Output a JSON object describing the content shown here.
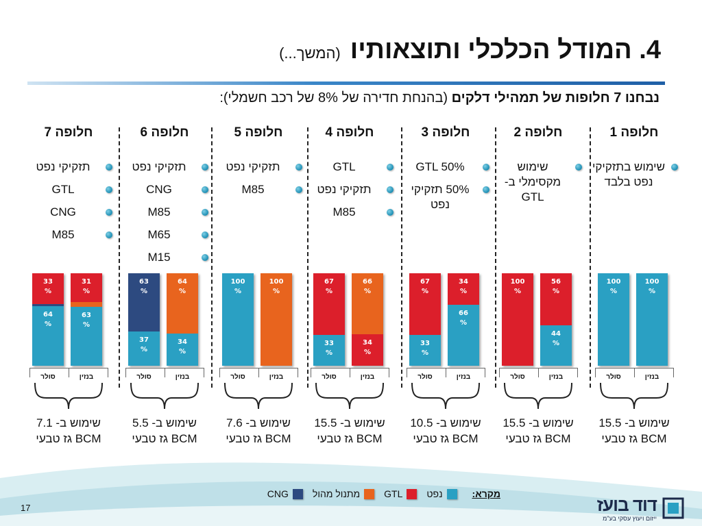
{
  "title": {
    "main": "4. המודל הכלכלי ותוצאותיו",
    "sub": "(המשך...)"
  },
  "subtitle": {
    "bold": "נבחנו 7 חלופות של תמהילי דלקים",
    "rest": "(בהנחת חדירה של  8% של רכב חשמלי):"
  },
  "colors": {
    "cng": "#2d4a80",
    "gtl": "#e8641e",
    "oil": "#dc1f2b",
    "gas": "#2aa0c3",
    "accent": "#1f5fa6"
  },
  "fuel_labels": {
    "diesel": "סולר",
    "gasoline": "בנזין"
  },
  "options": [
    {
      "head": "חלופה 1",
      "items": [
        "שימוש בתזקיקי נפט בלבד"
      ],
      "foot": [
        "שימוש ב- 15.5",
        "BCM גז טבעי"
      ]
    },
    {
      "head": "חלופה 2",
      "items": [
        "שימוש מקסימלי ב- GTL"
      ],
      "foot": [
        "שימוש ב- 15.5",
        "BCM גז טבעי"
      ]
    },
    {
      "head": "חלופה 3",
      "items": [
        "GTL 50%",
        "50% תזקיקי נפט"
      ],
      "foot": [
        "שימוש ב- 10.5",
        "BCM גז טבעי"
      ]
    },
    {
      "head": "חלופה 4",
      "items": [
        "GTL",
        "תזקיקי נפט",
        "M85"
      ],
      "foot": [
        "שימוש ב- 15.5",
        "BCM גז טבעי"
      ]
    },
    {
      "head": "חלופה 5",
      "items": [
        "תזקיקי נפט",
        "M85"
      ],
      "foot": [
        "שימוש ב- 7.6",
        "BCM גז טבעי"
      ]
    },
    {
      "head": "חלופה 6",
      "items": [
        "תזקיקי נפט",
        "CNG",
        "M85",
        "M65",
        "M15"
      ],
      "foot": [
        "שימוש ב- 5.5",
        "BCM גז טבעי"
      ]
    },
    {
      "head": "חלופה 7",
      "items": [
        "תזקיקי נפט",
        "GTL",
        "CNG",
        "M85"
      ],
      "foot": [
        "שימוש ב- 7.1",
        "BCM גז טבעי"
      ]
    }
  ],
  "chart_data": {
    "type": "bar",
    "stacked": true,
    "categories": [
      "סולר",
      "בנזין"
    ],
    "groups": [
      {
        "name": "חלופה 1",
        "diesel": [
          {
            "fuel": "gas",
            "value": 100,
            "label": "100 %"
          }
        ],
        "gasoline": [
          {
            "fuel": "gas",
            "value": 100,
            "label": "100 %"
          }
        ]
      },
      {
        "name": "חלופה 2",
        "diesel": [
          {
            "fuel": "oil",
            "value": 100,
            "label": "100 %"
          }
        ],
        "gasoline": [
          {
            "fuel": "oil",
            "value": 56,
            "label": "56 %"
          },
          {
            "fuel": "gas",
            "value": 44,
            "label": "44 %"
          }
        ]
      },
      {
        "name": "חלופה 3",
        "diesel": [
          {
            "fuel": "oil",
            "value": 67,
            "label": "67 %"
          },
          {
            "fuel": "gas",
            "value": 33,
            "label": "33 %"
          }
        ],
        "gasoline": [
          {
            "fuel": "oil",
            "value": 34,
            "label": "34 %"
          },
          {
            "fuel": "gas",
            "value": 66,
            "label": "66 %"
          }
        ]
      },
      {
        "name": "חלופה 4",
        "diesel": [
          {
            "fuel": "oil",
            "value": 67,
            "label": "67 %"
          },
          {
            "fuel": "gas",
            "value": 33,
            "label": "33 %"
          }
        ],
        "gasoline": [
          {
            "fuel": "gtl",
            "value": 66,
            "label": "66 %"
          },
          {
            "fuel": "oil",
            "value": 34,
            "label": "34 %"
          }
        ]
      },
      {
        "name": "חלופה 5",
        "diesel": [
          {
            "fuel": "gas",
            "value": 100,
            "label": "100 %"
          }
        ],
        "gasoline": [
          {
            "fuel": "gtl",
            "value": 100,
            "label": "100 %"
          }
        ]
      },
      {
        "name": "חלופה 6",
        "diesel": [
          {
            "fuel": "cng",
            "value": 63,
            "label": "63 %"
          },
          {
            "fuel": "gas",
            "value": 37,
            "label": "37 %"
          }
        ],
        "gasoline": [
          {
            "fuel": "gtl",
            "value": 64,
            "label": "64 %"
          },
          {
            "fuel": "gas",
            "value": 34,
            "label": "34 %"
          }
        ]
      },
      {
        "name": "חלופה 7",
        "diesel": [
          {
            "fuel": "oil",
            "value": 33,
            "label": "33 %"
          },
          {
            "fuel": "cng",
            "value": 2,
            "label": ""
          },
          {
            "fuel": "gas",
            "value": 64,
            "label": "64 %"
          }
        ],
        "gasoline": [
          {
            "fuel": "oil",
            "value": 31,
            "label": "31 %"
          },
          {
            "fuel": "gtl",
            "value": 5,
            "label": ""
          },
          {
            "fuel": "gas",
            "value": 63,
            "label": "63 %"
          }
        ]
      }
    ],
    "ylim": [
      0,
      100
    ]
  },
  "legend": {
    "title": "מקרא:",
    "items": [
      {
        "label": "נפט",
        "fuel": "oil"
      },
      {
        "label": "GTL",
        "fuel": "gtl"
      },
      {
        "label": "מתנול מהול",
        "fuel": "gtl"
      },
      {
        "label": "CNG",
        "fuel": "cng"
      }
    ]
  },
  "logo": {
    "name": "דוד בועז",
    "tagline": "ייזום ויעוץ עסקי בע\"מ"
  },
  "page_number": "17"
}
